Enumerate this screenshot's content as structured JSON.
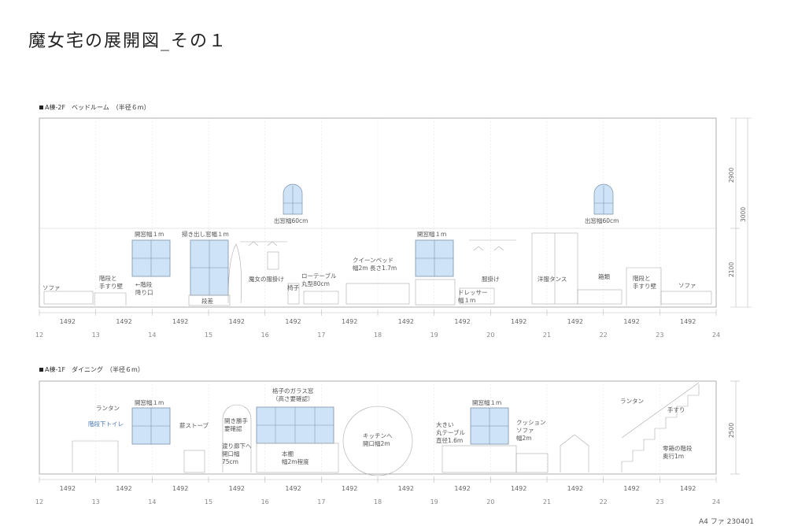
{
  "title": "魔女宅の展開図_その１",
  "footer": "A4 ファ 230401",
  "section_top": {
    "label": "A棟-2F　ベッドルーム　（半径６m）",
    "dims": [
      "1492",
      "1492",
      "1492",
      "1492",
      "1492",
      "1492",
      "1492",
      "1492",
      "1492",
      "1492",
      "1492",
      "1492"
    ],
    "axis": [
      "12",
      "13",
      "14",
      "15",
      "16",
      "17",
      "18",
      "19",
      "20",
      "21",
      "22",
      "23",
      "24"
    ],
    "vdims": [
      "2900",
      "3000",
      "2100"
    ],
    "labels": {
      "sofa_left": "ソファ",
      "stairs_wall": "階段と\n手すり壁",
      "stairs_down": "←階段\n降り口",
      "window1": "開窓幅１m",
      "window_large": "掃き出し窓幅１m",
      "step": "段差",
      "witch_coat": "魔女の服掛け",
      "chair": "椅子",
      "low_table": "ローテーブル\n丸型80cm",
      "round_window1": "出窓幅60cm",
      "queen_bed": "クイーンベッド\n幅2m 長さ1.7m",
      "window2": "開窓幅１m",
      "dresser": "ドレッサー\n幅１m",
      "hanger": "服掛け",
      "wardrobe": "洋服タンス",
      "boxes": "箱類",
      "stairs_wall_right": "階段と\n手すり壁",
      "sofa_right": "ソファ",
      "round_window2": "出窓幅60cm"
    }
  },
  "section_bottom": {
    "label": "A棟-1F　ダイニング　（半径６m）",
    "dims": [
      "1492",
      "1492",
      "1492",
      "1492",
      "1492",
      "1492",
      "1492",
      "1492",
      "1492",
      "1492",
      "1492",
      "1492"
    ],
    "axis": [
      "12",
      "13",
      "14",
      "15",
      "16",
      "17",
      "18",
      "19",
      "20",
      "21",
      "22",
      "23",
      "24"
    ],
    "vdims": [
      "2500"
    ],
    "labels": {
      "lantern_left": "ランタン",
      "toilet": "階段下トイレ",
      "window1": "開窓幅１m",
      "stove": "薪ストーブ",
      "swing_door": "開き勝手\n要確認",
      "corridor": "渡り廊下へ\n開口幅\n75cm",
      "glass_window": "格子のガラス窓\n（高さ要確認）",
      "bookshelf": "本棚\n幅2m程度",
      "kitchen": "キッチンへ\n開口幅2m",
      "big_table": "大きい\n丸テーブル\n直径1.6m",
      "window2": "開窓幅１m",
      "cushion_sofa": "クッション\nソファ\n幅2m",
      "lantern_right": "ランタン",
      "handrail": "手すり",
      "stairs_front": "零箱の階段\n奥行1m"
    }
  }
}
